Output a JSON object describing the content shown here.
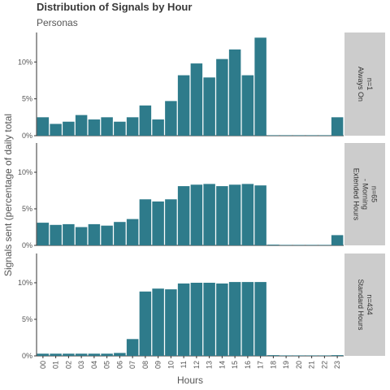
{
  "title": "Distribution of Signals by Hour",
  "subtitle": "Personas",
  "colors": {
    "bar": "#2e7b8b",
    "strip": "#cccccc",
    "axis": "#333333",
    "text": "#555555"
  },
  "chart_data": {
    "type": "bar",
    "xlabel": "Hours",
    "ylabel": "Signals sent (percentage of daily total",
    "ylim": [
      0,
      14
    ],
    "yticks": [
      0,
      5,
      10
    ],
    "ytick_labels": [
      "0%",
      "5%",
      "10%"
    ],
    "categories": [
      "00",
      "01",
      "02",
      "03",
      "04",
      "05",
      "06",
      "07",
      "08",
      "09",
      "10",
      "11",
      "12",
      "13",
      "14",
      "15",
      "16",
      "17",
      "18",
      "19",
      "20",
      "21",
      "22",
      "23"
    ],
    "panels": [
      {
        "strip": [
          "Always On",
          "n=1"
        ],
        "values": [
          2.5,
          1.6,
          1.9,
          2.8,
          2.2,
          2.5,
          1.9,
          2.5,
          4.1,
          2.2,
          4.7,
          8.2,
          9.8,
          7.9,
          10.4,
          11.7,
          8.2,
          13.3,
          0,
          0,
          0,
          0,
          0,
          2.5
        ]
      },
      {
        "strip": [
          "Extended Hours",
          "- Morning",
          "n=65"
        ],
        "values": [
          3.1,
          2.8,
          2.9,
          2.5,
          2.9,
          2.7,
          3.2,
          3.6,
          6.3,
          6.0,
          6.3,
          8.1,
          8.3,
          8.4,
          8.1,
          8.3,
          8.4,
          8.2,
          0.1,
          0,
          0,
          0,
          0,
          1.4
        ]
      },
      {
        "strip": [
          "Standard Hours",
          "n=434"
        ],
        "values": [
          0.3,
          0.3,
          0.3,
          0.3,
          0.3,
          0.3,
          0.4,
          2.3,
          8.8,
          9.2,
          9.1,
          9.9,
          10.0,
          10.0,
          9.9,
          10.1,
          10.1,
          10.1,
          0.1,
          0,
          0,
          0,
          0,
          0.1
        ]
      }
    ]
  }
}
